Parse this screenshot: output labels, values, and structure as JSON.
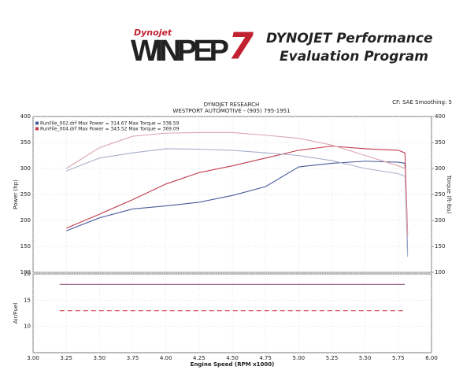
{
  "header": {
    "brand": "Dynojet",
    "logo": "WINPEP",
    "logo_number": "7",
    "line1": "DYNOJET Performance",
    "line2": "Evaluation Program"
  },
  "chart_data": [
    {
      "type": "line",
      "title": "DYNOJET RESEARCH",
      "subtitle": "WESTPORT AUTOMOTIVE - (905) 795-1951",
      "note": "CF: SAE Smoothing: 5",
      "ylabel": "Power (hp)",
      "y2label": "Torque (ft-lbs)",
      "legend": [
        "RunFile_002.drf Max Power = 314.67    Max Torque = 338.59",
        "RunFile_004.drf Max Power = 343.52    Max Torque = 369.09"
      ],
      "x": [
        3.25,
        3.5,
        3.75,
        4.0,
        4.25,
        4.5,
        4.75,
        5.0,
        5.25,
        5.5,
        5.75,
        5.8,
        5.82
      ],
      "series": [
        {
          "color": "#4a5a9a",
          "values": [
            180,
            205,
            222,
            228,
            235,
            248,
            265,
            303,
            310,
            314,
            312,
            310,
            140
          ]
        },
        {
          "color": "#c0394a",
          "values": [
            185,
            212,
            240,
            270,
            292,
            305,
            320,
            335,
            343,
            338,
            335,
            330,
            175
          ]
        },
        {
          "color": "#a8b0cc",
          "axis": "y2",
          "values": [
            295,
            320,
            330,
            338,
            337,
            335,
            330,
            325,
            315,
            300,
            290,
            285,
            130
          ]
        },
        {
          "color": "#dca6ae",
          "axis": "y2",
          "values": [
            300,
            340,
            362,
            368,
            369,
            369,
            364,
            358,
            345,
            325,
            305,
            300,
            170
          ]
        }
      ],
      "xlim": [
        3,
        6
      ],
      "ylim": [
        100,
        400
      ],
      "yticks": [
        100,
        150,
        200,
        250,
        300,
        350,
        400
      ],
      "y2lim": [
        100,
        400
      ],
      "y2ticks": [
        100,
        150,
        200,
        250,
        300,
        350,
        400
      ],
      "grid": true
    },
    {
      "type": "line",
      "ylabel": "Air/Fuel",
      "xlabel": "Engine Speed (RPM x1000)",
      "x": [
        3.2,
        5.8
      ],
      "series": [
        {
          "color": "#8a5a80",
          "values": [
            18,
            18
          ]
        },
        {
          "color": "#d04050",
          "dashed": true,
          "values": [
            13,
            13
          ]
        }
      ],
      "xlim": [
        3,
        6
      ],
      "ylim": [
        5,
        20
      ],
      "yticks": [
        10,
        15,
        20
      ],
      "xticks": [
        {
          "value": 3,
          "label": "3.00"
        },
        {
          "value": 3.25,
          "label": "3.25"
        },
        {
          "value": 3.5,
          "label": "3.50"
        },
        {
          "value": 3.75,
          "label": "3.75"
        },
        {
          "value": 4,
          "label": "4.00"
        },
        {
          "value": 4.25,
          "label": "4.25"
        },
        {
          "value": 4.5,
          "label": "4.50"
        },
        {
          "value": 4.75,
          "label": "4.75"
        },
        {
          "value": 5,
          "label": "5.00"
        },
        {
          "value": 5.25,
          "label": "5.25"
        },
        {
          "value": 5.5,
          "label": "5.50"
        },
        {
          "value": 5.75,
          "label": "5.75"
        },
        {
          "value": 6,
          "label": "6.00"
        }
      ],
      "grid": true
    }
  ]
}
